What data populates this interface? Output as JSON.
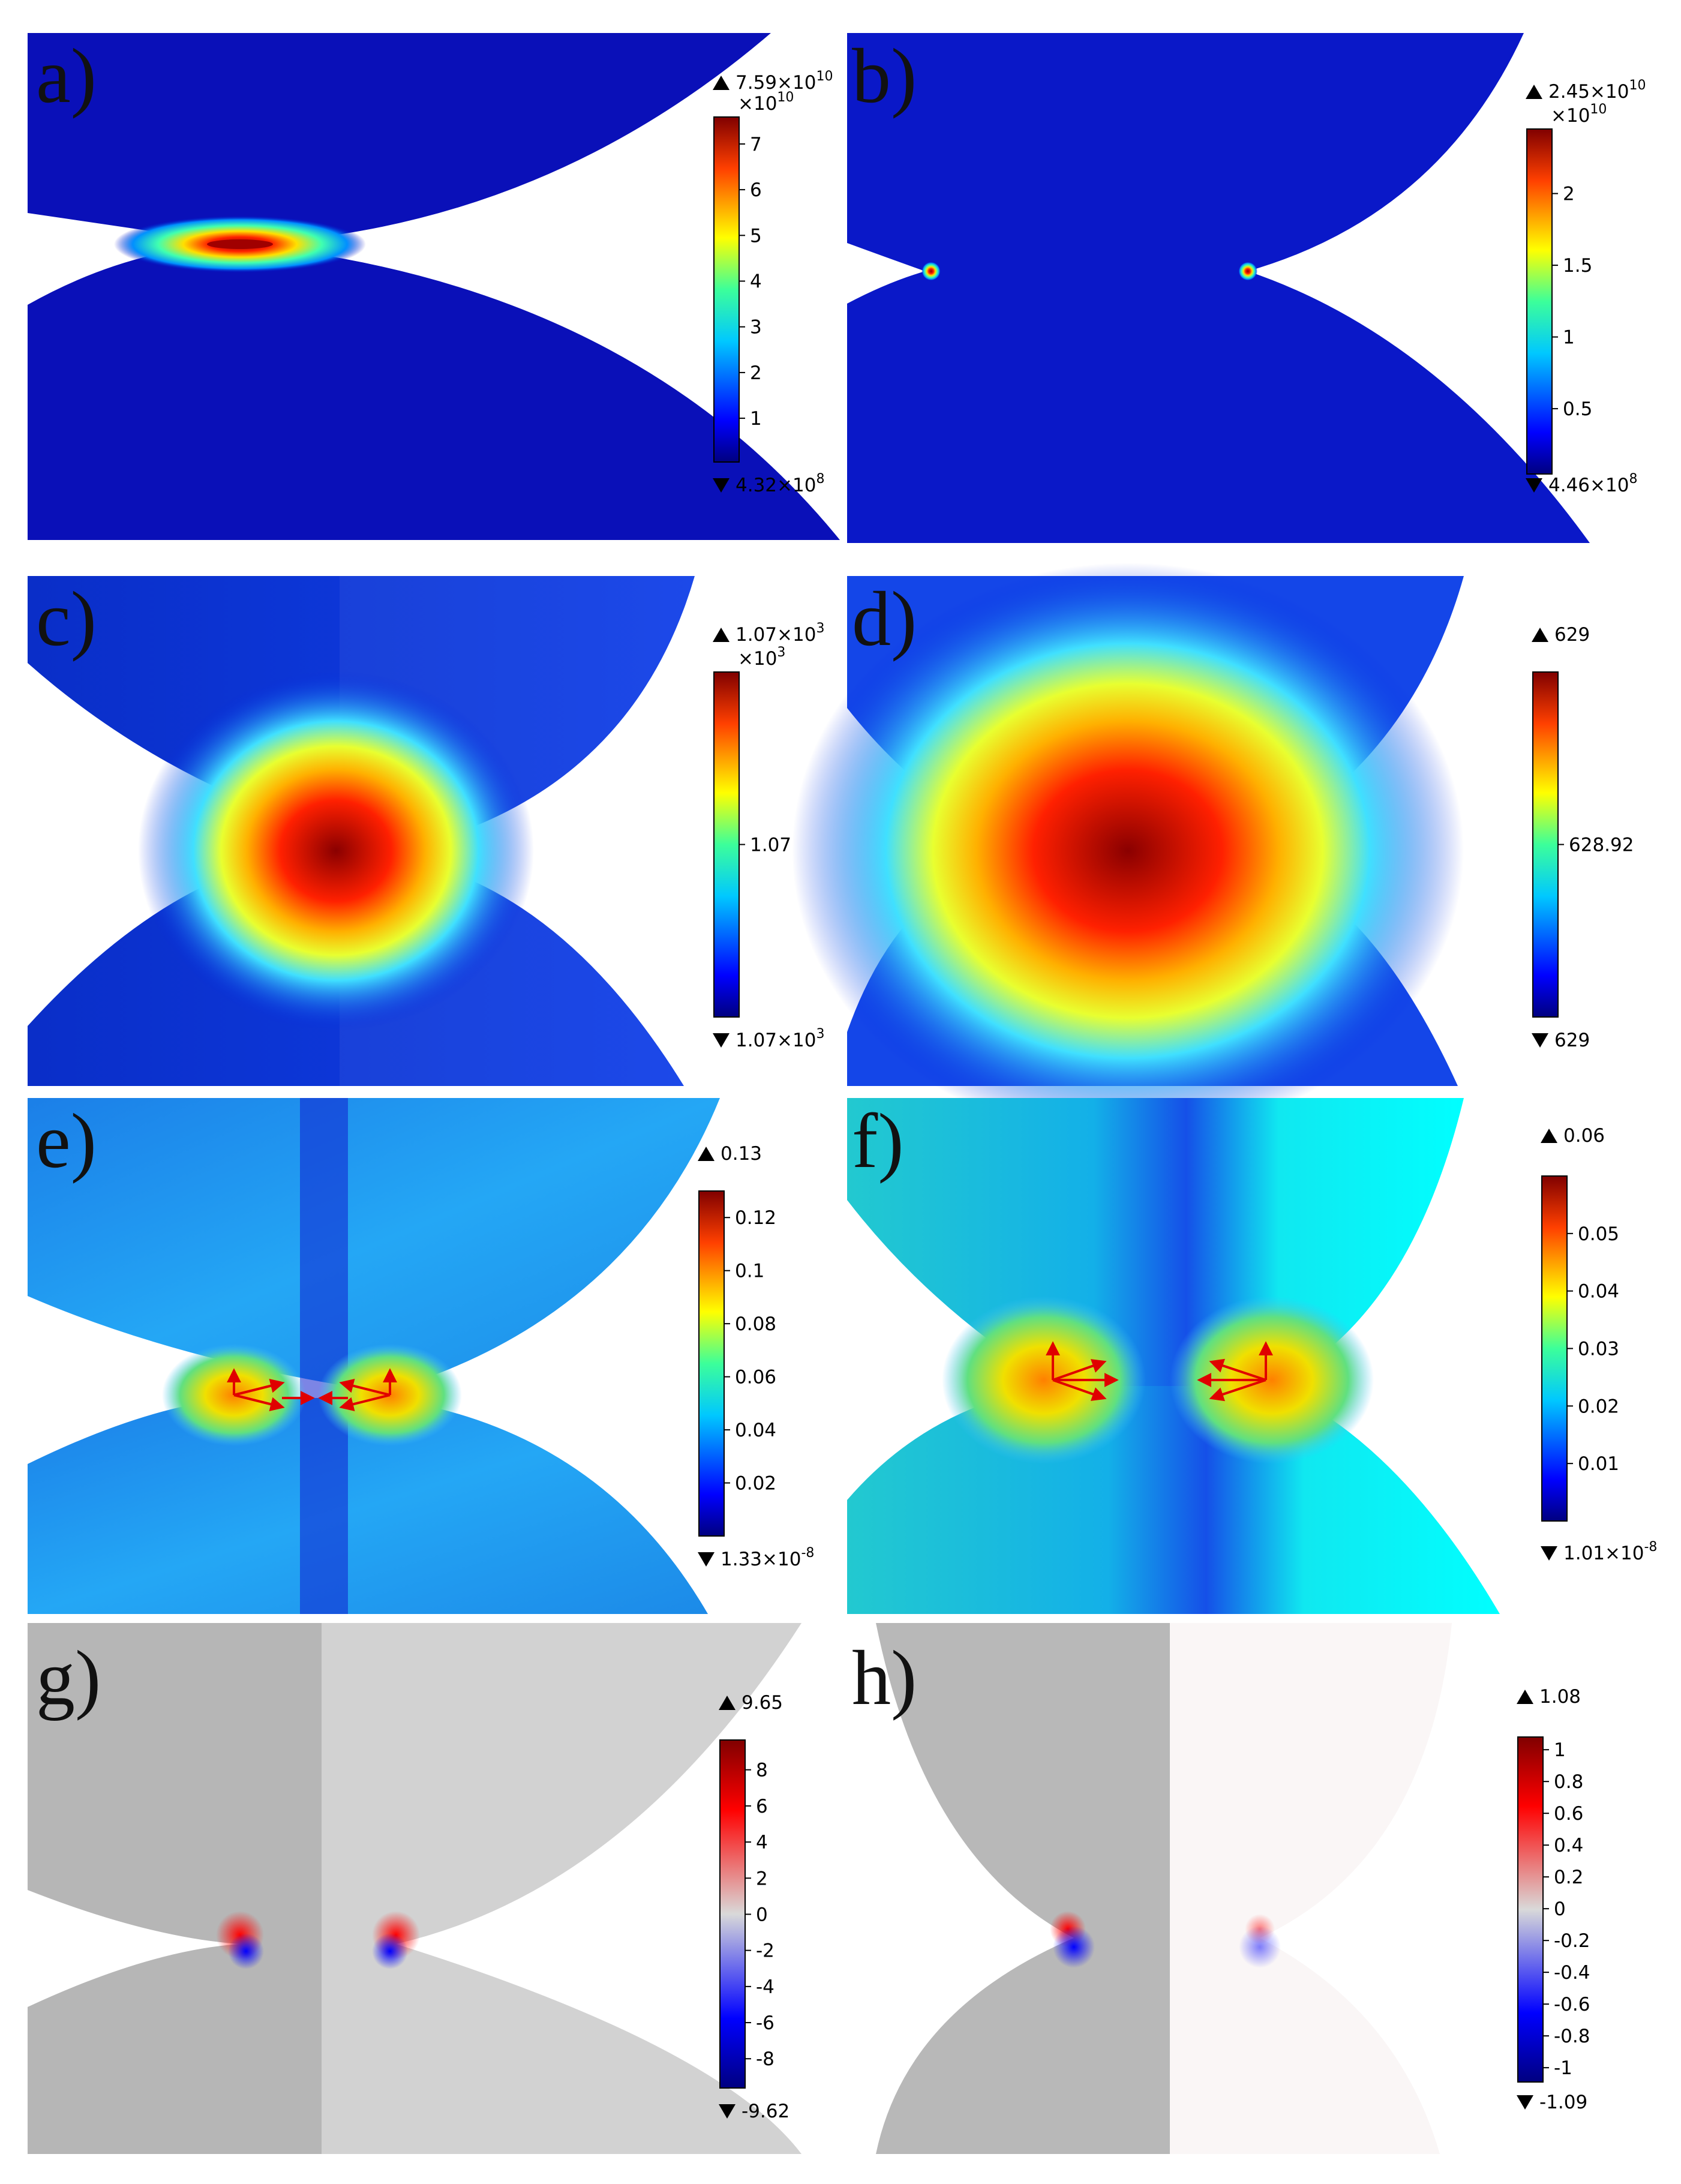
{
  "panels": [
    {
      "id": "a",
      "label": "a)",
      "max_text": "7.59×10",
      "max_exp": "10",
      "mult": "×10",
      "mult_exp": "10",
      "min_text": "4.32×10",
      "min_exp": "8",
      "cmap": "jet",
      "ticks": [
        {
          "t": "7",
          "v": 7
        },
        {
          "t": "6",
          "v": 6
        },
        {
          "t": "5",
          "v": 5
        },
        {
          "t": "4",
          "v": 4
        },
        {
          "t": "3",
          "v": 3
        },
        {
          "t": "2",
          "v": 2
        },
        {
          "t": "1",
          "v": 1
        }
      ],
      "range": [
        0.0432,
        7.59
      ]
    },
    {
      "id": "b",
      "label": "b)",
      "max_text": "2.45×10",
      "max_exp": "10",
      "mult": "×10",
      "mult_exp": "10",
      "min_text": "4.46×10",
      "min_exp": "8",
      "cmap": "jet",
      "ticks": [
        {
          "t": "2",
          "v": 2
        },
        {
          "t": "1.5",
          "v": 1.5
        },
        {
          "t": "1",
          "v": 1
        },
        {
          "t": "0.5",
          "v": 0.5
        }
      ],
      "range": [
        0.0446,
        2.45
      ]
    },
    {
      "id": "c",
      "label": "c)",
      "max_text": "1.07×10",
      "max_exp": "3",
      "mult": "×10",
      "mult_exp": "3",
      "min_text": "1.07×10",
      "min_exp": "3",
      "cmap": "jet",
      "ticks": [
        {
          "t": "1.07",
          "v": 0.5
        }
      ],
      "range": [
        0,
        1
      ]
    },
    {
      "id": "d",
      "label": "d)",
      "max_text": "629",
      "max_exp": "",
      "mult": "",
      "mult_exp": "",
      "min_text": "629",
      "min_exp": "",
      "cmap": "jet",
      "ticks": [
        {
          "t": "628.92",
          "v": 0.5
        }
      ],
      "range": [
        0,
        1
      ]
    },
    {
      "id": "e",
      "label": "e)",
      "max_text": "0.13",
      "max_exp": "",
      "mult": "",
      "mult_exp": "",
      "min_text": "1.33×10",
      "min_exp": "-8",
      "cmap": "jet",
      "ticks": [
        {
          "t": "0.12",
          "v": 0.12
        },
        {
          "t": "0.1",
          "v": 0.1
        },
        {
          "t": "0.08",
          "v": 0.08
        },
        {
          "t": "0.06",
          "v": 0.06
        },
        {
          "t": "0.04",
          "v": 0.04
        },
        {
          "t": "0.02",
          "v": 0.02
        }
      ],
      "range": [
        0,
        0.13
      ]
    },
    {
      "id": "f",
      "label": "f)",
      "max_text": "0.06",
      "max_exp": "",
      "mult": "",
      "mult_exp": "",
      "min_text": "1.01×10",
      "min_exp": "-8",
      "cmap": "jet",
      "ticks": [
        {
          "t": "0.05",
          "v": 0.05
        },
        {
          "t": "0.04",
          "v": 0.04
        },
        {
          "t": "0.03",
          "v": 0.03
        },
        {
          "t": "0.02",
          "v": 0.02
        },
        {
          "t": "0.01",
          "v": 0.01
        }
      ],
      "range": [
        0,
        0.06
      ]
    },
    {
      "id": "g",
      "label": "g)",
      "max_text": "9.65",
      "max_exp": "",
      "mult": "",
      "mult_exp": "",
      "min_text": "-9.62",
      "min_exp": "",
      "cmap": "rwb",
      "ticks": [
        {
          "t": "8",
          "v": 8
        },
        {
          "t": "6",
          "v": 6
        },
        {
          "t": "4",
          "v": 4
        },
        {
          "t": "2",
          "v": 2
        },
        {
          "t": "0",
          "v": 0
        },
        {
          "t": "-2",
          "v": -2
        },
        {
          "t": "-4",
          "v": -4
        },
        {
          "t": "-6",
          "v": -6
        },
        {
          "t": "-8",
          "v": -8
        }
      ],
      "range": [
        -9.62,
        9.65
      ]
    },
    {
      "id": "h",
      "label": "h)",
      "max_text": "1.08",
      "max_exp": "",
      "mult": "",
      "mult_exp": "",
      "min_text": "-1.09",
      "min_exp": "",
      "cmap": "rwb",
      "ticks": [
        {
          "t": "1",
          "v": 1
        },
        {
          "t": "0.8",
          "v": 0.8
        },
        {
          "t": "0.6",
          "v": 0.6
        },
        {
          "t": "0.4",
          "v": 0.4
        },
        {
          "t": "0.2",
          "v": 0.2
        },
        {
          "t": "0",
          "v": 0
        },
        {
          "t": "-0.2",
          "v": -0.2
        },
        {
          "t": "-0.4",
          "v": -0.4
        },
        {
          "t": "-0.6",
          "v": -0.6
        },
        {
          "t": "-0.8",
          "v": -0.8
        },
        {
          "t": "-1",
          "v": -1
        }
      ],
      "range": [
        -1.09,
        1.08
      ]
    }
  ]
}
